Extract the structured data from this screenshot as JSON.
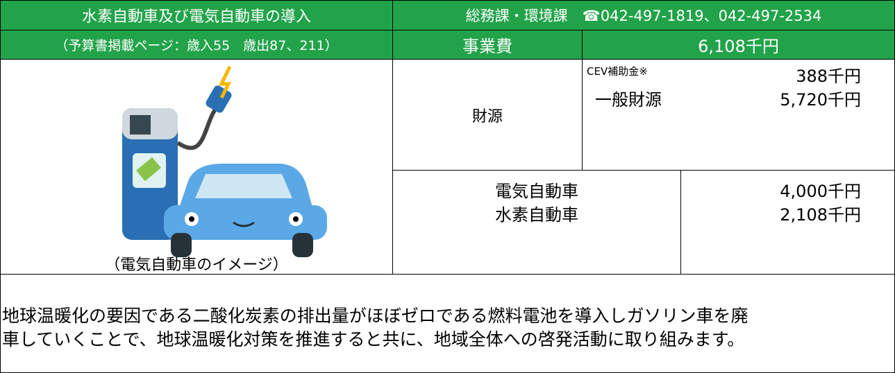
{
  "header": {
    "title": "水素自動車及び電気自動車の導入",
    "contact": "総務課・環境課　☎042-497-1819、042-497-2534",
    "budget_pages": "（予算書掲載ページ：歳入55　歳出87、211）",
    "cost_label": "事業費",
    "cost_value": "6,108千円"
  },
  "image": {
    "caption": "（電気自動車のイメージ）"
  },
  "funding": {
    "label": "財源",
    "items": [
      {
        "name": "CEV補助金※",
        "amount": "388千円"
      },
      {
        "name": "一般財源",
        "amount": "5,720千円"
      }
    ]
  },
  "breakdown": {
    "items": [
      {
        "name": "電気自動車",
        "amount": "4,000千円"
      },
      {
        "name": "水素自動車",
        "amount": "2,108千円"
      }
    ]
  },
  "description": {
    "lines": [
      "地球温暖化の要因である二酸化炭素の排出量がほぼゼロである燃料電池を導入しガソリン車を廃",
      "車していくことで、地球温暖化対策を推進すると共に、地域全体への啓発活動に取り組みます。"
    ]
  }
}
